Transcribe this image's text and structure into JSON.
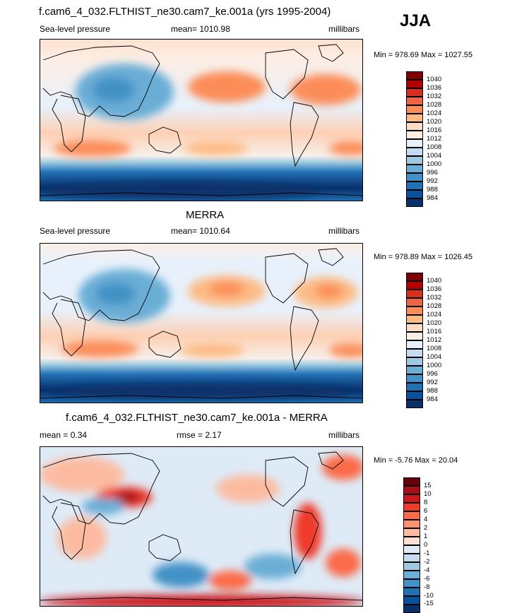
{
  "season": "JJA",
  "panels": [
    {
      "id": "model",
      "title": "f.cam6_4_032.FLTHIST_ne30.cam7_ke.001a (yrs 1995-2004)",
      "left_label": "Sea-level pressure",
      "center_label": "mean= 1010.98",
      "right_label": "millibars",
      "minmax": "Min = 978.69 Max = 1027.55",
      "colorbar": {
        "labels": [
          "1040",
          "1036",
          "1032",
          "1028",
          "1024",
          "1020",
          "1016",
          "1012",
          "1008",
          "1004",
          "1000",
          "996",
          "992",
          "988",
          "984"
        ],
        "colors": [
          "#7f0000",
          "#b30000",
          "#d7301f",
          "#ef6548",
          "#fc8d59",
          "#fdbb84",
          "#fddbc7",
          "#fdeee4",
          "#e8f1fb",
          "#c6dbef",
          "#9ecae1",
          "#6baed6",
          "#4292c6",
          "#2171b5",
          "#08519c",
          "#08306b"
        ]
      }
    },
    {
      "id": "obs",
      "title": "MERRA",
      "left_label": "Sea-level pressure",
      "center_label": "mean= 1010.64",
      "right_label": "millibars",
      "minmax": "Min = 978.89 Max = 1026.45",
      "colorbar": {
        "labels": [
          "1040",
          "1036",
          "1032",
          "1028",
          "1024",
          "1020",
          "1016",
          "1012",
          "1008",
          "1004",
          "1000",
          "996",
          "992",
          "988",
          "984"
        ],
        "colors": [
          "#7f0000",
          "#b30000",
          "#d7301f",
          "#ef6548",
          "#fc8d59",
          "#fdbb84",
          "#fddbc7",
          "#fdeee4",
          "#e8f1fb",
          "#c6dbef",
          "#9ecae1",
          "#6baed6",
          "#4292c6",
          "#2171b5",
          "#08519c",
          "#08306b"
        ]
      }
    },
    {
      "id": "diff",
      "title": "f.cam6_4_032.FLTHIST_ne30.cam7_ke.001a - MERRA",
      "left_label": "mean =   0.34",
      "center_label": "rmse =   2.17",
      "right_label": "millibars",
      "minmax": "Min =  -5.76 Max =  20.04",
      "colorbar": {
        "labels": [
          "15",
          "10",
          "8",
          "6",
          "4",
          "2",
          "1",
          "0",
          "-1",
          "-2",
          "-4",
          "-6",
          "-8",
          "-10",
          "-15"
        ],
        "colors": [
          "#67000d",
          "#a50f15",
          "#cb181d",
          "#ef3b2c",
          "#fb6a4a",
          "#fc9272",
          "#fcbba1",
          "#fee0d2",
          "#deebf7",
          "#c6dbef",
          "#9ecae1",
          "#6baed6",
          "#4292c6",
          "#2171b5",
          "#08519c",
          "#08306b"
        ]
      }
    }
  ],
  "chart_data": [
    {
      "type": "heatmap",
      "title": "f.cam6_4_032.FLTHIST_ne30.cam7_ke.001a (yrs 1995-2004)",
      "variable": "Sea-level pressure",
      "units": "millibars",
      "mean": 1010.98,
      "min": 978.69,
      "max": 1027.55,
      "contour_levels": [
        984,
        988,
        992,
        996,
        1000,
        1004,
        1008,
        1012,
        1016,
        1020,
        1024,
        1028,
        1032,
        1036,
        1040
      ]
    },
    {
      "type": "heatmap",
      "title": "MERRA",
      "variable": "Sea-level pressure",
      "units": "millibars",
      "mean": 1010.64,
      "min": 978.89,
      "max": 1026.45,
      "contour_levels": [
        984,
        988,
        992,
        996,
        1000,
        1004,
        1008,
        1012,
        1016,
        1020,
        1024,
        1028,
        1032,
        1036,
        1040
      ]
    },
    {
      "type": "heatmap",
      "title": "f.cam6_4_032.FLTHIST_ne30.cam7_ke.001a - MERRA",
      "units": "millibars",
      "mean": 0.34,
      "rmse": 2.17,
      "min": -5.76,
      "max": 20.04,
      "contour_levels": [
        -15,
        -10,
        -8,
        -6,
        -4,
        -2,
        -1,
        0,
        1,
        2,
        4,
        6,
        8,
        10,
        15
      ]
    }
  ]
}
